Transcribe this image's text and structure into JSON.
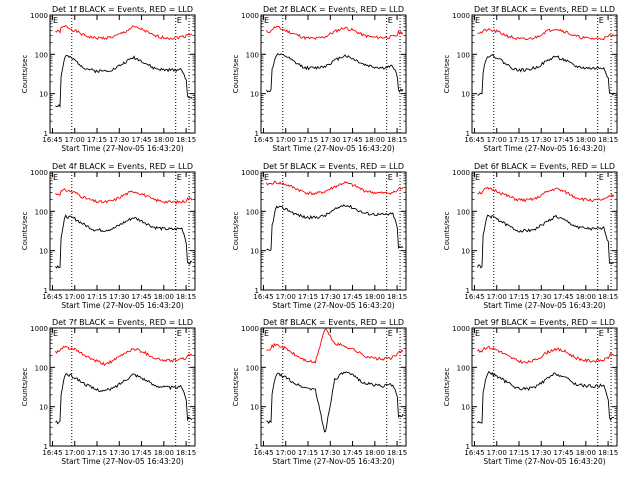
{
  "chart_data": [
    {
      "type": "line",
      "title": "Det 1f BLACK = Events, RED = LLD",
      "e_label_left": "E",
      "e_label_right": "E",
      "ylabel": "Counts/sec",
      "xlabel": "Start Time (27-Nov-05 16:43:20)",
      "x_ticks": [
        "16:45",
        "17:00",
        "17:15",
        "17:30",
        "17:45",
        "18:00",
        "18:15"
      ],
      "y_ticks": [
        "1",
        "10",
        "100",
        "1000"
      ],
      "yscale": "log",
      "ylim": [
        1,
        1000
      ],
      "xlim": [
        "16:43:20",
        "18:21:00"
      ],
      "markers": [
        "16:58",
        "18:08",
        "18:17"
      ],
      "series": [
        {
          "color": "#ff0000",
          "values": [
            380,
            520,
            400,
            300,
            260,
            260,
            280,
            360,
            500,
            420,
            300,
            270,
            260,
            280,
            330
          ]
        },
        {
          "color": "#000000",
          "values": [
            5,
            95,
            70,
            45,
            38,
            38,
            42,
            60,
            85,
            65,
            45,
            40,
            40,
            42,
            8
          ]
        }
      ]
    },
    {
      "type": "line",
      "title": "Det 2f BLACK = Events, RED = LLD",
      "e_label_left": "E",
      "e_label_right": "E",
      "ylabel": "Counts/sec",
      "xlabel": "Start Time (27-Nov-05 16:43:20)",
      "x_ticks": [
        "16:45",
        "17:00",
        "17:15",
        "17:30",
        "17:45",
        "18:00",
        "18:15"
      ],
      "y_ticks": [
        "1",
        "10",
        "100",
        "1000"
      ],
      "yscale": "log",
      "ylim": [
        1,
        1000
      ],
      "xlim": [
        "16:43:20",
        "18:21:00"
      ],
      "markers": [
        "16:58",
        "18:08",
        "18:17"
      ],
      "series": [
        {
          "color": "#ff0000",
          "values": [
            380,
            500,
            400,
            320,
            260,
            250,
            280,
            380,
            480,
            400,
            300,
            270,
            270,
            280,
            360
          ]
        },
        {
          "color": "#000000",
          "values": [
            12,
            100,
            90,
            60,
            45,
            45,
            50,
            70,
            95,
            75,
            55,
            48,
            45,
            50,
            12
          ]
        }
      ]
    },
    {
      "type": "line",
      "title": "Det 3f BLACK = Events, RED = LLD",
      "e_label_left": "E",
      "e_label_right": "E",
      "ylabel": "Counts/sec",
      "xlabel": "Start Time (27-Nov-05 16:43:20)",
      "x_ticks": [
        "16:45",
        "17:00",
        "17:15",
        "17:30",
        "17:45",
        "18:00",
        "18:15"
      ],
      "y_ticks": [
        "1",
        "10",
        "100",
        "1000"
      ],
      "yscale": "log",
      "ylim": [
        1,
        1000
      ],
      "xlim": [
        "16:43:20",
        "18:21:00"
      ],
      "markers": [
        "16:58",
        "18:08",
        "18:17"
      ],
      "series": [
        {
          "color": "#ff0000",
          "values": [
            360,
            420,
            380,
            300,
            250,
            240,
            270,
            380,
            460,
            380,
            290,
            260,
            250,
            260,
            300
          ]
        },
        {
          "color": "#000000",
          "values": [
            10,
            95,
            85,
            55,
            40,
            40,
            46,
            65,
            90,
            70,
            50,
            45,
            44,
            46,
            10
          ]
        }
      ]
    },
    {
      "type": "line",
      "title": "Det 4f BLACK = Events, RED = LLD",
      "e_label_left": "E",
      "e_label_right": "E",
      "ylabel": "Counts/sec",
      "xlabel": "Start Time (27-Nov-05 16:43:20)",
      "x_ticks": [
        "16:45",
        "17:00",
        "17:15",
        "17:30",
        "17:45",
        "18:00",
        "18:15"
      ],
      "y_ticks": [
        "1",
        "10",
        "100",
        "1000"
      ],
      "yscale": "log",
      "ylim": [
        1,
        1000
      ],
      "xlim": [
        "16:43:20",
        "18:21:00"
      ],
      "markers": [
        "16:58",
        "18:08",
        "18:17"
      ],
      "series": [
        {
          "color": "#ff0000",
          "values": [
            280,
            350,
            300,
            220,
            180,
            170,
            190,
            260,
            330,
            270,
            200,
            180,
            170,
            175,
            210
          ]
        },
        {
          "color": "#000000",
          "values": [
            4,
            75,
            65,
            45,
            34,
            33,
            37,
            52,
            70,
            55,
            40,
            36,
            35,
            37,
            5
          ]
        }
      ]
    },
    {
      "type": "line",
      "title": "Det 5f BLACK = Events, RED = LLD",
      "e_label_left": "E",
      "e_label_right": "E",
      "ylabel": "Counts/sec",
      "xlabel": "Start Time (27-Nov-05 16:43:20)",
      "x_ticks": [
        "16:45",
        "17:00",
        "17:15",
        "17:30",
        "17:45",
        "18:00",
        "18:15"
      ],
      "y_ticks": [
        "1",
        "10",
        "100",
        "1000"
      ],
      "yscale": "log",
      "ylim": [
        1,
        1000
      ],
      "xlim": [
        "16:43:20",
        "18:21:00"
      ],
      "markers": [
        "16:58",
        "18:08",
        "18:17"
      ],
      "series": [
        {
          "color": "#ff0000",
          "values": [
            500,
            550,
            480,
            380,
            300,
            280,
            320,
            420,
            540,
            450,
            340,
            300,
            290,
            300,
            380
          ]
        },
        {
          "color": "#000000",
          "values": [
            10,
            130,
            115,
            85,
            70,
            70,
            78,
            110,
            150,
            120,
            90,
            85,
            82,
            86,
            12
          ]
        }
      ]
    },
    {
      "type": "line",
      "title": "Det 6f BLACK = Events, RED = LLD",
      "e_label_left": "E",
      "e_label_right": "E",
      "ylabel": "Counts/sec",
      "xlabel": "Start Time (27-Nov-05 16:43:20)",
      "x_ticks": [
        "16:45",
        "17:00",
        "17:15",
        "17:30",
        "17:45",
        "18:00",
        "18:15"
      ],
      "y_ticks": [
        "1",
        "10",
        "100",
        "1000"
      ],
      "yscale": "log",
      "ylim": [
        1,
        1000
      ],
      "xlim": [
        "16:43:20",
        "18:21:00"
      ],
      "markers": [
        "16:58",
        "18:08",
        "18:17"
      ],
      "series": [
        {
          "color": "#ff0000",
          "values": [
            300,
            380,
            330,
            250,
            200,
            190,
            210,
            300,
            380,
            310,
            230,
            200,
            190,
            200,
            250
          ]
        },
        {
          "color": "#000000",
          "values": [
            4,
            80,
            65,
            45,
            33,
            32,
            36,
            52,
            75,
            58,
            42,
            37,
            35,
            37,
            5
          ]
        }
      ]
    },
    {
      "type": "line",
      "title": "Det 7f BLACK = Events, RED = LLD",
      "e_label_left": "E",
      "e_label_right": "E",
      "ylabel": "Counts/sec",
      "xlabel": "Start Time (27-Nov-05 16:43:20)",
      "x_ticks": [
        "16:45",
        "17:00",
        "17:15",
        "17:30",
        "17:45",
        "18:00",
        "18:15"
      ],
      "y_ticks": [
        "1",
        "10",
        "100",
        "1000"
      ],
      "yscale": "log",
      "ylim": [
        1,
        1000
      ],
      "xlim": [
        "16:43:20",
        "18:21:00"
      ],
      "markers": [
        "16:58",
        "18:08",
        "18:17"
      ],
      "series": [
        {
          "color": "#ff0000",
          "values": [
            250,
            330,
            280,
            200,
            150,
            120,
            150,
            220,
            300,
            250,
            180,
            150,
            150,
            160,
            200
          ]
        },
        {
          "color": "#000000",
          "values": [
            4,
            70,
            55,
            38,
            28,
            25,
            30,
            45,
            68,
            52,
            36,
            32,
            30,
            32,
            5
          ]
        }
      ]
    },
    {
      "type": "line",
      "title": "Det 8f BLACK = Events, RED = LLD",
      "e_label_left": "E",
      "e_label_right": "E",
      "ylabel": "Counts/sec",
      "xlabel": "Start Time (27-Nov-05 16:43:20)",
      "x_ticks": [
        "16:45",
        "17:00",
        "17:15",
        "17:30",
        "17:45",
        "18:00",
        "18:15"
      ],
      "y_ticks": [
        "1",
        "10",
        "100",
        "1000"
      ],
      "yscale": "log",
      "ylim": [
        1,
        1000
      ],
      "xlim": [
        "16:43:20",
        "18:21:00"
      ],
      "markers": [
        "16:58",
        "18:08",
        "18:17"
      ],
      "series": [
        {
          "color": "#ff0000",
          "values": [
            300,
            380,
            300,
            200,
            150,
            130,
            1000,
            400,
            350,
            280,
            200,
            170,
            160,
            180,
            260
          ]
        },
        {
          "color": "#000000",
          "values": [
            4,
            70,
            55,
            38,
            30,
            28,
            2,
            50,
            75,
            60,
            40,
            36,
            34,
            36,
            6
          ]
        }
      ]
    },
    {
      "type": "line",
      "title": "Det 9f BLACK = Events, RED = LLD",
      "e_label_left": "E",
      "e_label_right": "E",
      "ylabel": "Counts/sec",
      "xlabel": "Start Time (27-Nov-05 16:43:20)",
      "x_ticks": [
        "16:45",
        "17:00",
        "17:15",
        "17:30",
        "17:45",
        "18:00",
        "18:15"
      ],
      "y_ticks": [
        "1",
        "10",
        "100",
        "1000"
      ],
      "yscale": "log",
      "ylim": [
        1,
        1000
      ],
      "xlim": [
        "16:43:20",
        "18:21:00"
      ],
      "markers": [
        "16:58",
        "18:08",
        "18:17"
      ],
      "series": [
        {
          "color": "#ff0000",
          "values": [
            260,
            330,
            280,
            200,
            150,
            130,
            155,
            230,
            300,
            250,
            180,
            150,
            145,
            155,
            210
          ]
        },
        {
          "color": "#000000",
          "values": [
            4,
            75,
            60,
            42,
            30,
            28,
            32,
            48,
            70,
            55,
            38,
            34,
            33,
            35,
            5
          ]
        }
      ]
    }
  ]
}
